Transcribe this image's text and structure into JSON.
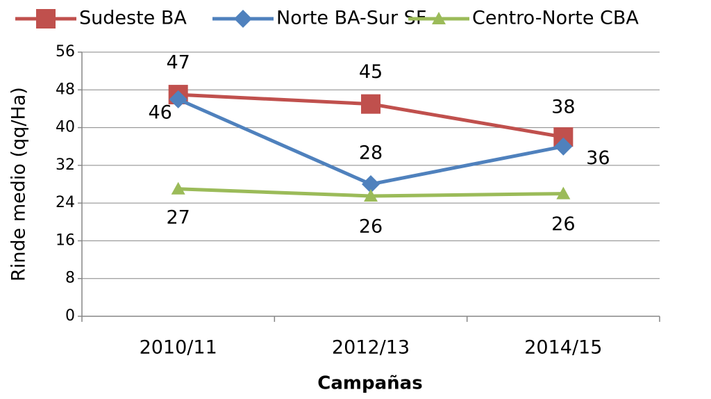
{
  "chart_data": {
    "type": "line",
    "x_label": "Campañas",
    "y_label": "Rinde medio (qq/Ha)",
    "categories": [
      "2010/11",
      "2012/13",
      "2014/15"
    ],
    "series": [
      {
        "name": "Sudeste BA",
        "color": "#c0504d",
        "marker": "square",
        "values": [
          47,
          45,
          38
        ]
      },
      {
        "name": "Norte BA-Sur SF",
        "color": "#4f81bd",
        "marker": "diamond",
        "values": [
          46,
          28,
          36
        ]
      },
      {
        "name": "Centro-Norte CBA",
        "color": "#9bbb59",
        "marker": "triangle",
        "values": [
          27,
          25.5,
          26
        ],
        "value_labels": [
          "27",
          "26",
          "26"
        ]
      }
    ],
    "ylim": [
      0,
      56
    ],
    "yticks": [
      0,
      8,
      16,
      24,
      32,
      40,
      48,
      56
    ],
    "grid": true,
    "legend": "top"
  }
}
